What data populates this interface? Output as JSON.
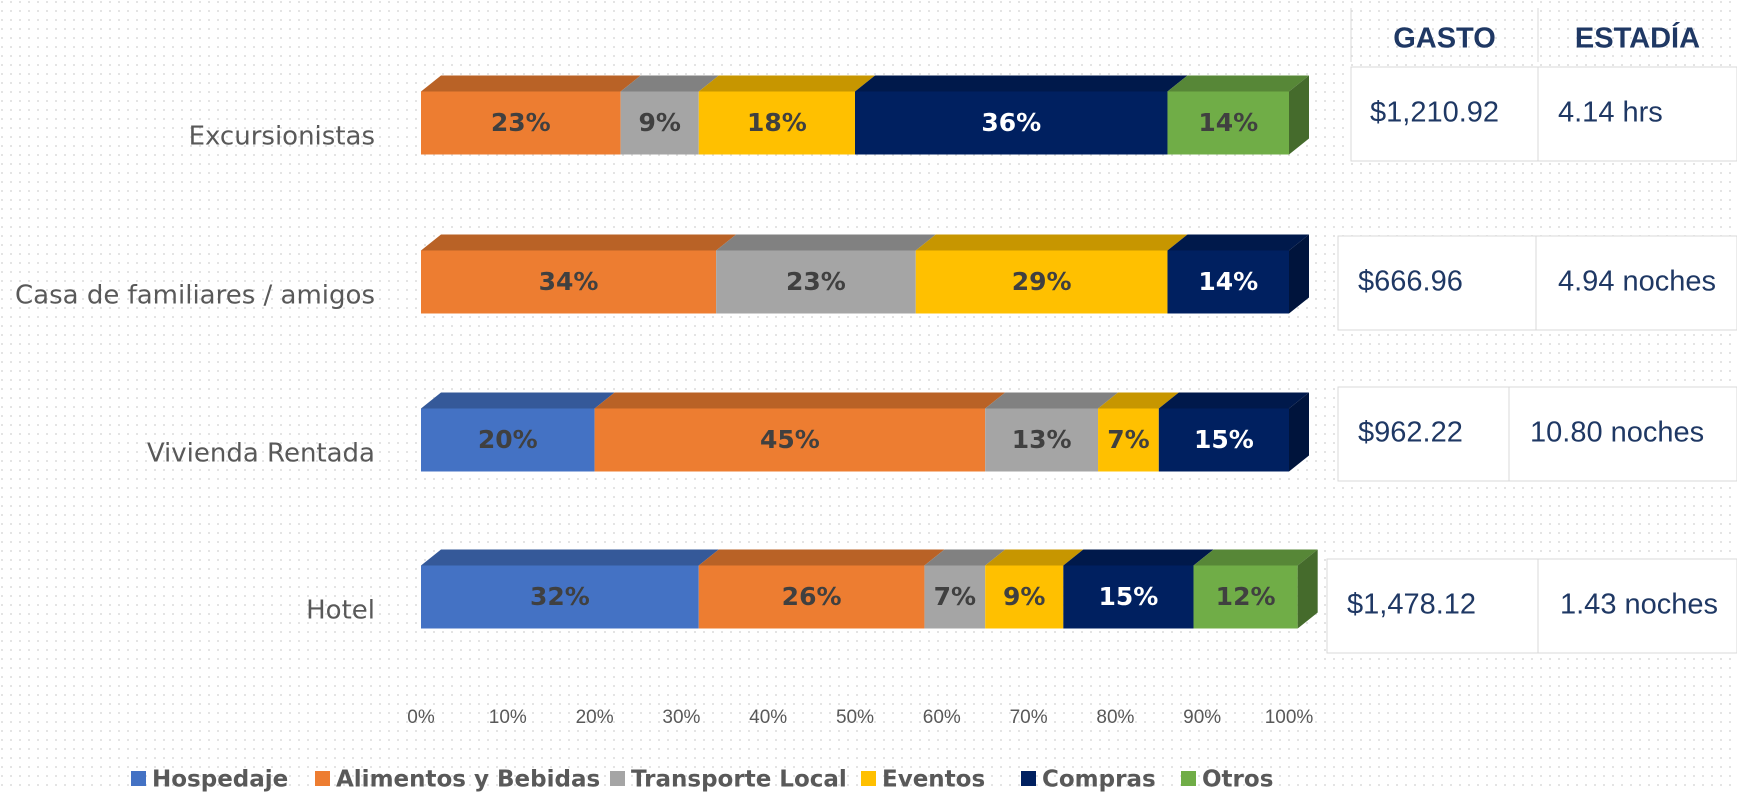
{
  "chart_data": {
    "type": "stacked-bar-horizontal",
    "categories": [
      "Excursionistas",
      "Casa de familiares / amigos",
      "Vivienda Rentada",
      "Hotel"
    ],
    "series": [
      {
        "name": "Hospedaje",
        "color": "#4472c4",
        "label_color": "#404040",
        "values": [
          null,
          null,
          20,
          32
        ],
        "value_labels": [
          null,
          null,
          "20%",
          "32%"
        ]
      },
      {
        "name": "Alimentos y Bebidas",
        "color": "#ed7d31",
        "label_color": "#404040",
        "values": [
          23,
          34,
          45,
          26
        ],
        "value_labels": [
          "23%",
          "34%",
          "45%",
          "26%"
        ]
      },
      {
        "name": "Transporte Local",
        "color": "#a5a5a5",
        "label_color": "#404040",
        "values": [
          9,
          23,
          13,
          7
        ],
        "value_labels": [
          "9%",
          "23%",
          "13%",
          "7%"
        ]
      },
      {
        "name": "Eventos",
        "color": "#ffc000",
        "label_color": "#404040",
        "values": [
          18,
          29,
          7,
          9
        ],
        "value_labels": [
          "18%",
          "29%",
          "7%",
          "9%"
        ]
      },
      {
        "name": "Compras",
        "color": "#002060",
        "label_color": "#ffffff",
        "values": [
          36,
          14,
          15,
          15
        ],
        "value_labels": [
          "36%",
          "14%",
          "15%",
          "15%"
        ]
      },
      {
        "name": "Otros",
        "color": "#70ad47",
        "label_color": "#404040",
        "values": [
          14,
          null,
          null,
          12
        ],
        "value_labels": [
          "14%",
          null,
          null,
          "12%"
        ]
      }
    ],
    "xlim": [
      0,
      100
    ],
    "xticks": [
      {
        "value": 0,
        "label": "0%"
      },
      {
        "value": 10,
        "label": "10%"
      },
      {
        "value": 20,
        "label": "20%"
      },
      {
        "value": 30,
        "label": "30%"
      },
      {
        "value": 40,
        "label": "40%"
      },
      {
        "value": 50,
        "label": "50%"
      },
      {
        "value": 60,
        "label": "60%"
      },
      {
        "value": 70,
        "label": "70%"
      },
      {
        "value": 80,
        "label": "80%"
      },
      {
        "value": 90,
        "label": "90%"
      },
      {
        "value": 100,
        "label": "100%"
      }
    ],
    "legend": "bottom"
  },
  "table": {
    "headers": [
      "GASTO",
      "ESTADÍA"
    ],
    "rows": [
      [
        "$1,210.92",
        "4.14 hrs"
      ],
      [
        "$666.96",
        "4.94 noches"
      ],
      [
        "$962.22",
        "10.80 noches"
      ],
      [
        "$1,478.12",
        "1.43 noches"
      ]
    ]
  }
}
